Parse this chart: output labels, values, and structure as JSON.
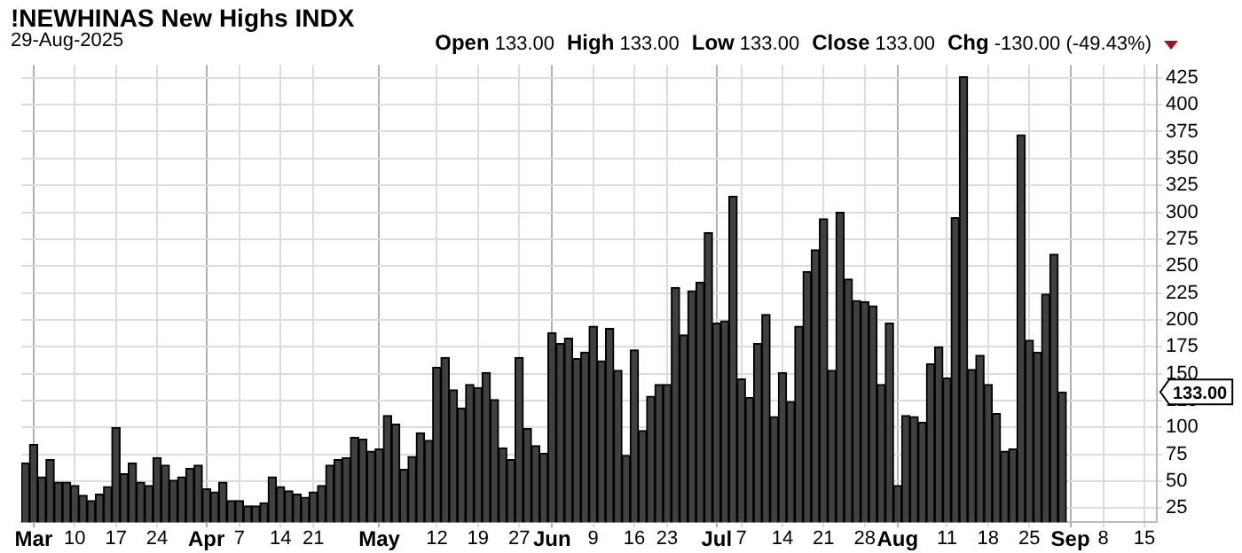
{
  "chart_data": {
    "type": "bar",
    "title": "!NEWHINAS New Highs INDX",
    "subtitle": "29-Aug-2025",
    "annotations": [
      "Open 133.00",
      "High 133.00",
      "Low 133.00",
      "Close 133.00",
      "Chg -130.00 (-49.43%)",
      "133.00"
    ],
    "categories": [
      null,
      "Mar",
      null,
      null,
      null,
      null,
      "10",
      null,
      null,
      null,
      null,
      "17",
      null,
      null,
      null,
      null,
      "24",
      null,
      null,
      null,
      null,
      null,
      "Apr",
      null,
      null,
      null,
      "7",
      null,
      null,
      null,
      null,
      "14",
      null,
      null,
      null,
      "21",
      null,
      null,
      null,
      null,
      null,
      null,
      null,
      "May",
      null,
      null,
      null,
      null,
      null,
      null,
      "12",
      null,
      null,
      null,
      null,
      "19",
      null,
      null,
      null,
      null,
      "27",
      null,
      null,
      null,
      "Jun",
      null,
      null,
      null,
      null,
      "9",
      null,
      null,
      null,
      null,
      "16",
      null,
      null,
      null,
      "23",
      null,
      null,
      null,
      null,
      null,
      "Jul",
      null,
      null,
      "7",
      null,
      null,
      null,
      null,
      "14",
      null,
      null,
      null,
      null,
      "21",
      null,
      null,
      null,
      null,
      "28",
      null,
      null,
      null,
      "Aug",
      null,
      null,
      null,
      null,
      null,
      "11",
      null,
      null,
      null,
      null,
      "18",
      null,
      null,
      null,
      null,
      "25",
      null,
      null,
      null,
      null,
      "Sep",
      null,
      null,
      null,
      "8",
      null,
      null,
      null,
      null,
      "15",
      null
    ],
    "values": [
      67,
      84,
      54,
      70,
      49,
      49,
      46,
      37,
      32,
      38,
      45,
      100,
      57,
      67,
      49,
      46,
      72,
      65,
      51,
      54,
      62,
      65,
      43,
      40,
      49,
      32,
      32,
      27,
      27,
      30,
      54,
      45,
      41,
      38,
      35,
      40,
      46,
      65,
      70,
      72,
      91,
      89,
      78,
      80,
      111,
      103,
      61,
      73,
      95,
      88,
      156,
      165,
      135,
      118,
      140,
      137,
      151,
      126,
      81,
      70,
      165,
      99,
      83,
      76,
      188,
      178,
      183,
      164,
      170,
      194,
      162,
      192,
      153,
      74,
      172,
      97,
      129,
      140,
      140,
      230,
      186,
      227,
      235,
      281,
      197,
      199,
      315,
      145,
      128,
      178,
      205,
      110,
      151,
      124,
      194,
      245,
      265,
      294,
      153,
      300,
      238,
      218,
      217,
      213,
      140,
      197,
      46,
      111,
      110,
      105,
      159,
      175,
      146,
      295,
      426,
      154,
      167,
      140,
      113,
      78,
      80,
      372,
      181,
      170,
      224,
      261,
      133,
      null,
      null,
      null,
      null,
      null,
      null,
      null,
      null,
      null,
      null,
      null
    ],
    "color": "#404040",
    "ylim": [
      12,
      437
    ],
    "yticks": [
      25,
      50,
      75,
      100,
      125,
      150,
      175,
      200,
      225,
      250,
      275,
      300,
      325,
      350,
      375,
      400,
      425
    ],
    "grid": true,
    "legend": false
  }
}
